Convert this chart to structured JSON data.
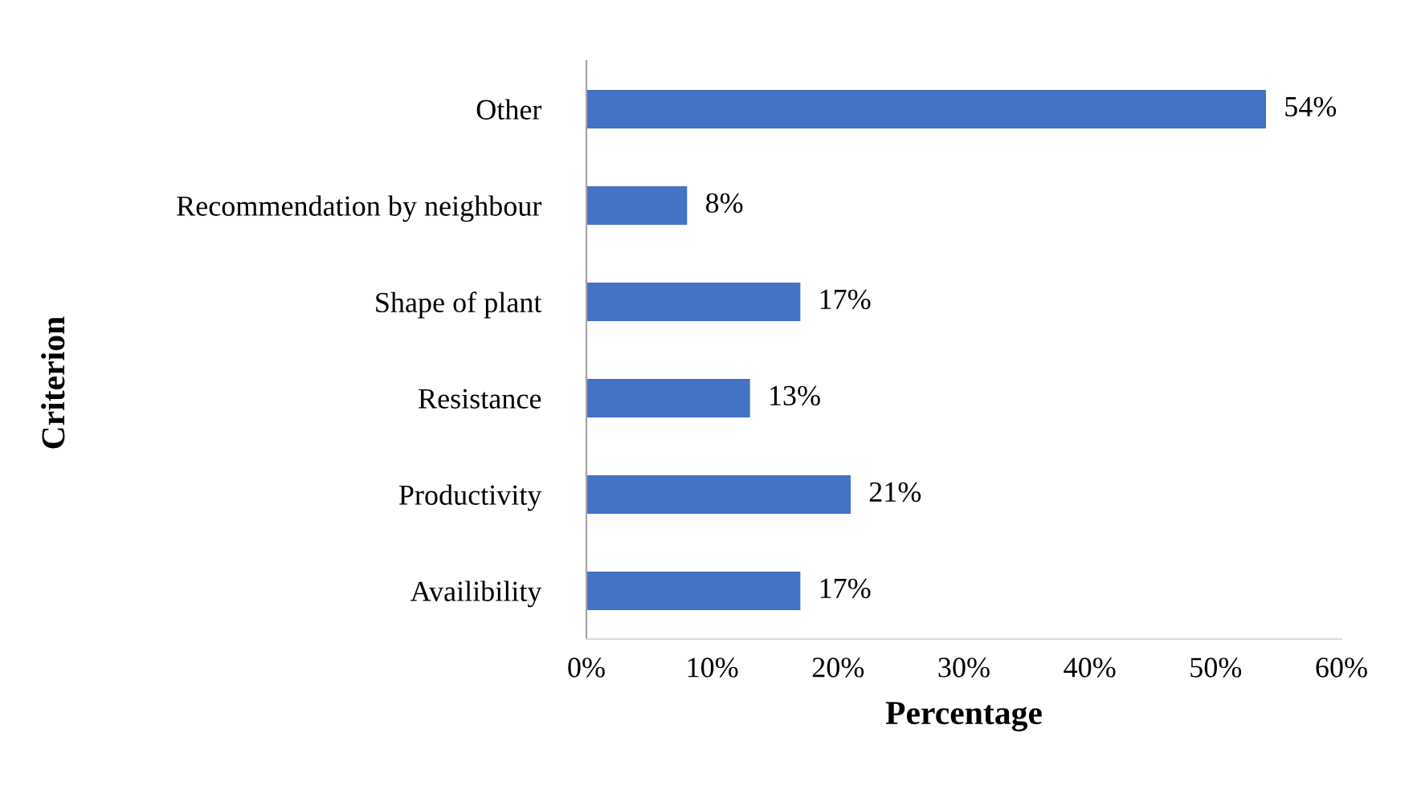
{
  "chart_data": {
    "type": "bar",
    "orientation": "horizontal",
    "xlabel": "Percentage",
    "ylabel": "Criterion",
    "categories": [
      "Other",
      "Recommendation by neighbour",
      "Shape of plant",
      "Resistance",
      "Productivity",
      "Availibility"
    ],
    "values": [
      54,
      8,
      17,
      13,
      21,
      17
    ],
    "value_labels": [
      "54%",
      "8%",
      "17%",
      "13%",
      "21%",
      "17%"
    ],
    "color": "#4472c4",
    "xlim": [
      0,
      60
    ],
    "xticks": [
      {
        "value": 0,
        "label": "0%"
      },
      {
        "value": 10,
        "label": "10%"
      },
      {
        "value": 20,
        "label": "20%"
      },
      {
        "value": 30,
        "label": "30%"
      },
      {
        "value": 40,
        "label": "40%"
      },
      {
        "value": 50,
        "label": "50%"
      },
      {
        "value": 60,
        "label": "60%"
      }
    ],
    "grid": false,
    "legend": false
  }
}
